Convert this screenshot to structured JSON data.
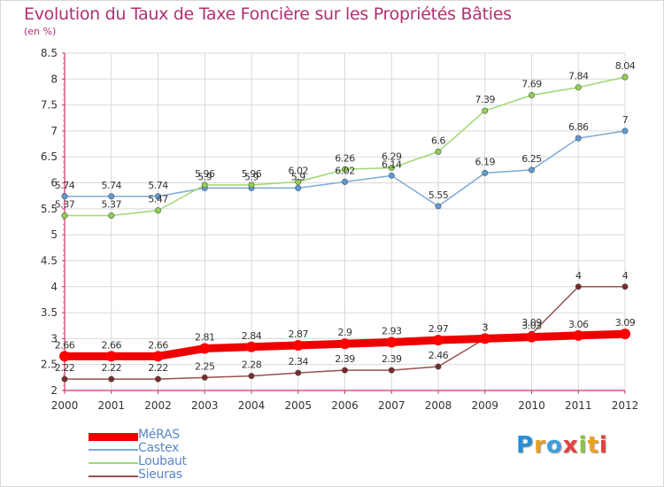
{
  "title": "Evolution du Taux de Taxe Foncière sur les Propriétés Bâties",
  "unit": "(en %)",
  "logo": "Proxiti",
  "colors": {
    "title": "#b03070",
    "axis": "#cc3366",
    "grid": "#d9d9d9",
    "label": "#333333"
  },
  "chart_data": {
    "type": "line",
    "x": [
      "2000",
      "2001",
      "2002",
      "2003",
      "2004",
      "2005",
      "2006",
      "2007",
      "2008",
      "2009",
      "2010",
      "2011",
      "2012"
    ],
    "ylim": [
      2,
      8.5
    ],
    "yticks": [
      "2",
      "2.5",
      "3",
      "3.5",
      "4",
      "4.5",
      "5",
      "5.5",
      "6",
      "6.5",
      "7",
      "7.5",
      "8",
      "8.5"
    ],
    "grid": true,
    "legend": "bottom-left",
    "series": [
      {
        "name": "MéRAS",
        "color": "#ff0000",
        "stroke": "#ee0000",
        "width": 9,
        "values": [
          2.66,
          2.66,
          2.66,
          2.81,
          2.84,
          2.87,
          2.9,
          2.93,
          2.97,
          3,
          3.03,
          3.06,
          3.09
        ],
        "labels": [
          "2.66",
          "2.66",
          "2.66",
          "2.81",
          "2.84",
          "2.87",
          "2.9",
          "2.93",
          "2.97",
          "3",
          "3.03",
          "3.06",
          "3.09"
        ]
      },
      {
        "name": "Castex",
        "color": "#5b9bd5",
        "stroke": "#7ea9d8",
        "width": 1.5,
        "values": [
          5.74,
          5.74,
          5.74,
          5.9,
          5.9,
          5.9,
          6.02,
          6.14,
          5.55,
          6.19,
          6.25,
          6.86,
          7
        ],
        "labels": [
          "5.74",
          "5.74",
          "5.74",
          "5.9",
          "5.9",
          "5.9",
          "6.02",
          "6.14",
          "5.55",
          "6.19",
          "6.25",
          "6.86",
          "7"
        ]
      },
      {
        "name": "Loubaut",
        "color": "#8fd14f",
        "stroke": "#9fd870",
        "width": 1.5,
        "values": [
          5.37,
          5.37,
          5.47,
          5.96,
          5.96,
          6.02,
          6.26,
          6.29,
          6.6,
          7.39,
          7.69,
          7.84,
          8.04
        ],
        "labels": [
          "5.37",
          "5.37",
          "5.47",
          "5.96",
          "5.96",
          "6.02",
          "6.26",
          "6.29",
          "6.6",
          "7.39",
          "7.69",
          "7.84",
          "8.04"
        ]
      },
      {
        "name": "Sieuras",
        "color": "#7a2a2a",
        "stroke": "#9a5050",
        "width": 1.5,
        "values": [
          2.22,
          2.22,
          2.22,
          2.25,
          2.28,
          2.34,
          2.39,
          2.39,
          2.46,
          3,
          3.09,
          4,
          4
        ],
        "labels": [
          "2.22",
          "2.22",
          "2.22",
          "2.25",
          "2.28",
          "2.34",
          "2.39",
          "2.39",
          "2.46",
          "3",
          "3.09",
          "4",
          "4"
        ]
      }
    ]
  }
}
